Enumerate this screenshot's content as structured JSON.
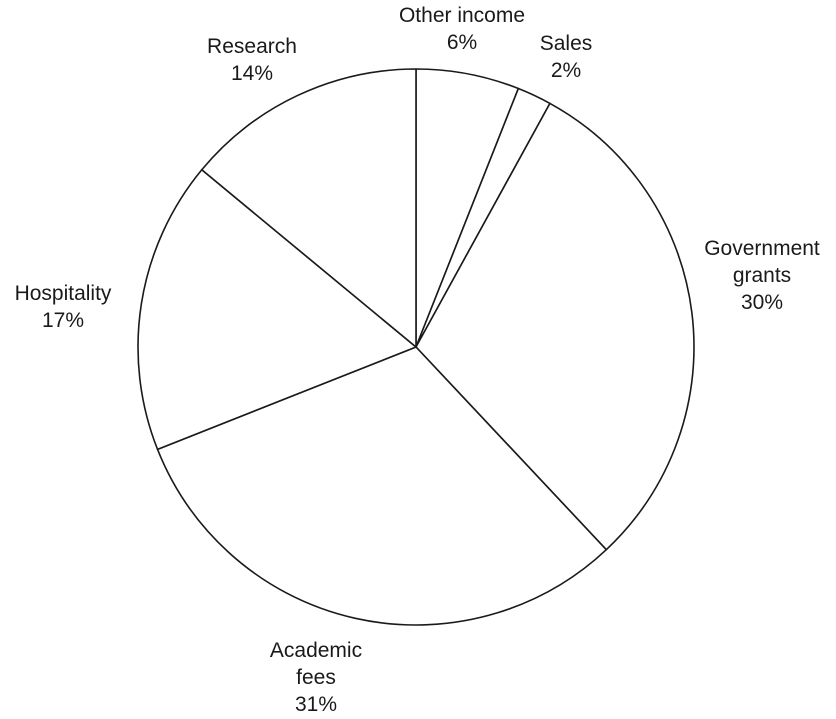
{
  "chart_data": {
    "type": "pie",
    "start": "top",
    "direction": "clockwise",
    "colors": {
      "slice_fill": "#ffffff",
      "slice_stroke": "#1a1a1a",
      "text": "#1a1a1a"
    },
    "slices": [
      {
        "label": "Other income",
        "value": 6,
        "percent_label": "6%"
      },
      {
        "label": "Sales",
        "value": 2,
        "percent_label": "2%"
      },
      {
        "label": "Government grants",
        "value": 30,
        "percent_label": "30%"
      },
      {
        "label": "Academic fees",
        "value": 31,
        "percent_label": "31%"
      },
      {
        "label": "Hospitality",
        "value": 17,
        "percent_label": "17%"
      },
      {
        "label": "Research",
        "value": 14,
        "percent_label": "14%"
      }
    ]
  }
}
